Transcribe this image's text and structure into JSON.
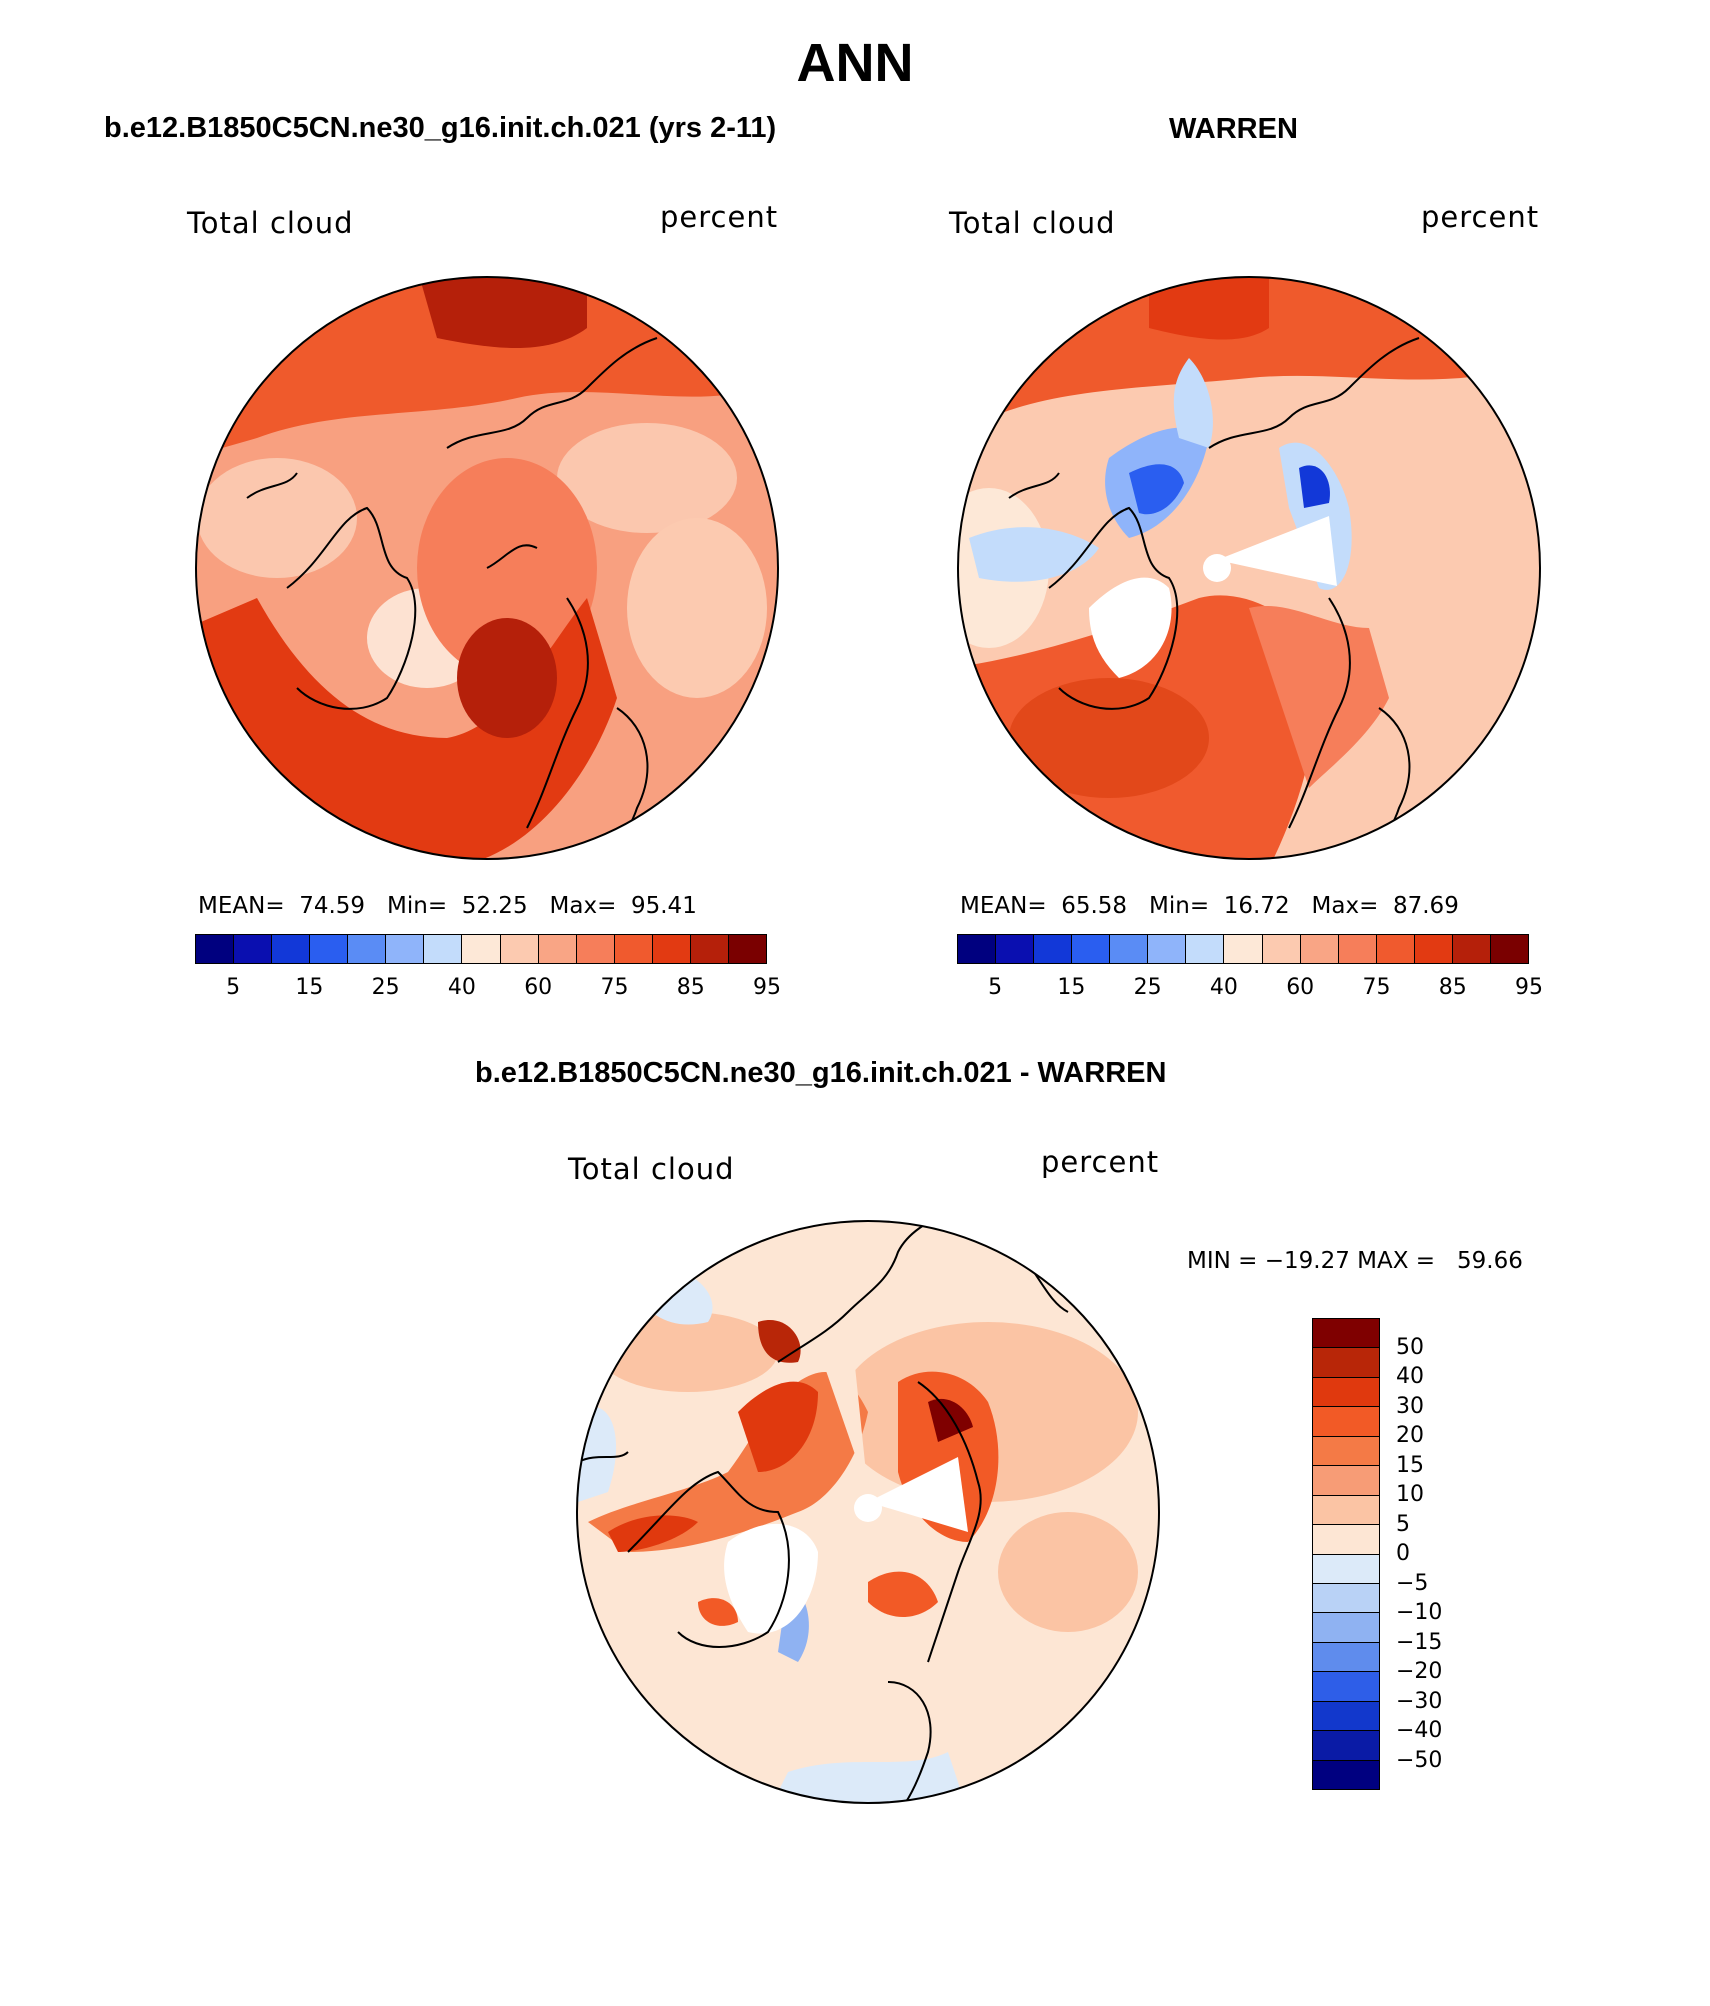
{
  "title": "ANN",
  "panels": [
    {
      "heading": "b.e12.B1850C5CN.ne30_g16.init.ch.021 (yrs 2-11)",
      "variable": "Total cloud",
      "units": "percent",
      "stats": {
        "mean_label": "MEAN=",
        "mean": "74.59",
        "min_label": "Min=",
        "min": "52.25",
        "max_label": "Max=",
        "max": "95.41"
      }
    },
    {
      "heading": "WARREN",
      "variable": "Total cloud",
      "units": "percent",
      "stats": {
        "mean_label": "MEAN=",
        "mean": "65.58",
        "min_label": "Min=",
        "min": "16.72",
        "max_label": "Max=",
        "max": "87.69"
      }
    },
    {
      "heading": "b.e12.B1850C5CN.ne30_g16.init.ch.021 - WARREN",
      "variable": "Total cloud",
      "units": "percent",
      "stats_text": "MIN = −19.27 MAX =   59.66"
    }
  ],
  "colorbar_abs": {
    "colors": [
      "#00007f",
      "#0a0fb0",
      "#1238d8",
      "#2a5ef0",
      "#5a8cf5",
      "#8fb4fa",
      "#c3dcfb",
      "#fde8d7",
      "#fccab0",
      "#f9a585",
      "#f67e5a",
      "#f05a2e",
      "#e23a12",
      "#b5200a",
      "#7a0000"
    ],
    "labels": [
      "5",
      "15",
      "25",
      "40",
      "60",
      "75",
      "85",
      "95"
    ]
  },
  "colorbar_diff": {
    "colors": [
      "#7f0000",
      "#b82608",
      "#e0390e",
      "#f25a26",
      "#f47a46",
      "#f79c76",
      "#fbc4a4",
      "#fde6d4",
      "#dceaf9",
      "#b9d2f6",
      "#8fb2f2",
      "#5f8ced",
      "#2e5ee8",
      "#1238cc",
      "#0a1ba6",
      "#000080"
    ],
    "labels": [
      "50",
      "40",
      "30",
      "20",
      "15",
      "10",
      "5",
      "0",
      "−5",
      "−10",
      "−15",
      "−20",
      "−30",
      "−40",
      "−50"
    ]
  },
  "chart_data": [
    {
      "type": "heatmap",
      "title": "Total cloud",
      "units": "percent",
      "mean": 74.59,
      "min": 52.25,
      "max": 95.41,
      "levels": [
        5,
        15,
        25,
        40,
        60,
        75,
        85,
        95
      ]
    },
    {
      "type": "heatmap",
      "title": "Total cloud",
      "units": "percent",
      "mean": 65.58,
      "min": 16.72,
      "max": 87.69,
      "levels": [
        5,
        15,
        25,
        40,
        60,
        75,
        85,
        95
      ]
    },
    {
      "type": "heatmap",
      "title": "Total cloud",
      "units": "percent",
      "min": -19.27,
      "max": 59.66,
      "levels": [
        -50,
        -40,
        -30,
        -20,
        -15,
        -10,
        -5,
        0,
        5,
        10,
        15,
        20,
        30,
        40,
        50
      ]
    }
  ]
}
